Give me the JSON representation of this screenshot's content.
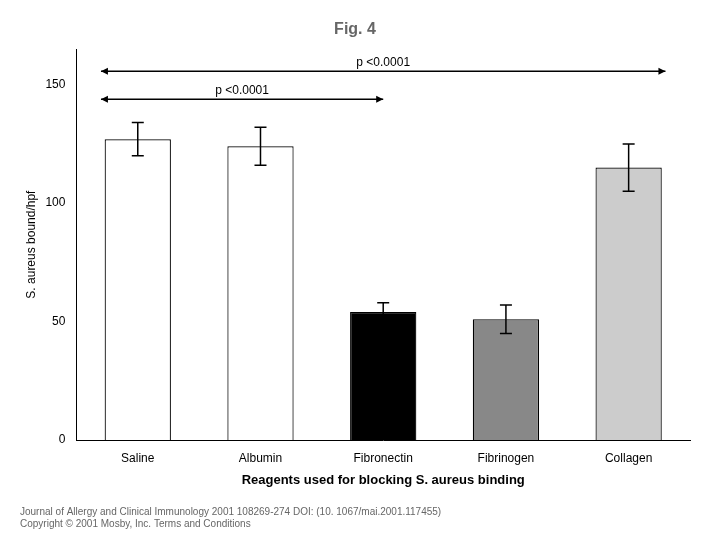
{
  "chart_data": {
    "type": "bar",
    "title": "Fig. 4",
    "categories": [
      "Saline",
      "Albumin",
      "Fibronectin",
      "Fibrinogen",
      "Collagen"
    ],
    "values": [
      127,
      124,
      54,
      51,
      115
    ],
    "errors": [
      7,
      8,
      4,
      6,
      10
    ],
    "colors": [
      "white",
      "white",
      "black",
      "#888888",
      "#cccccc"
    ],
    "ylim": [
      0,
      165
    ],
    "yticks": [
      0,
      50,
      100,
      150
    ],
    "x_label": "Reagents used for blocking S. aureus binding",
    "y_label": "S. aureus bound/hpf",
    "annotations": [
      "p <0.0001",
      "p <0.0001"
    ],
    "footer": [
      "Journal of Allergy and Clinical Immunology 2001 108269-274 DOI: (10. 1067/mai.2001.117455)",
      "Copyright © 2001 Mosby, Inc. Terms and Conditions"
    ],
    "grid": false
  }
}
